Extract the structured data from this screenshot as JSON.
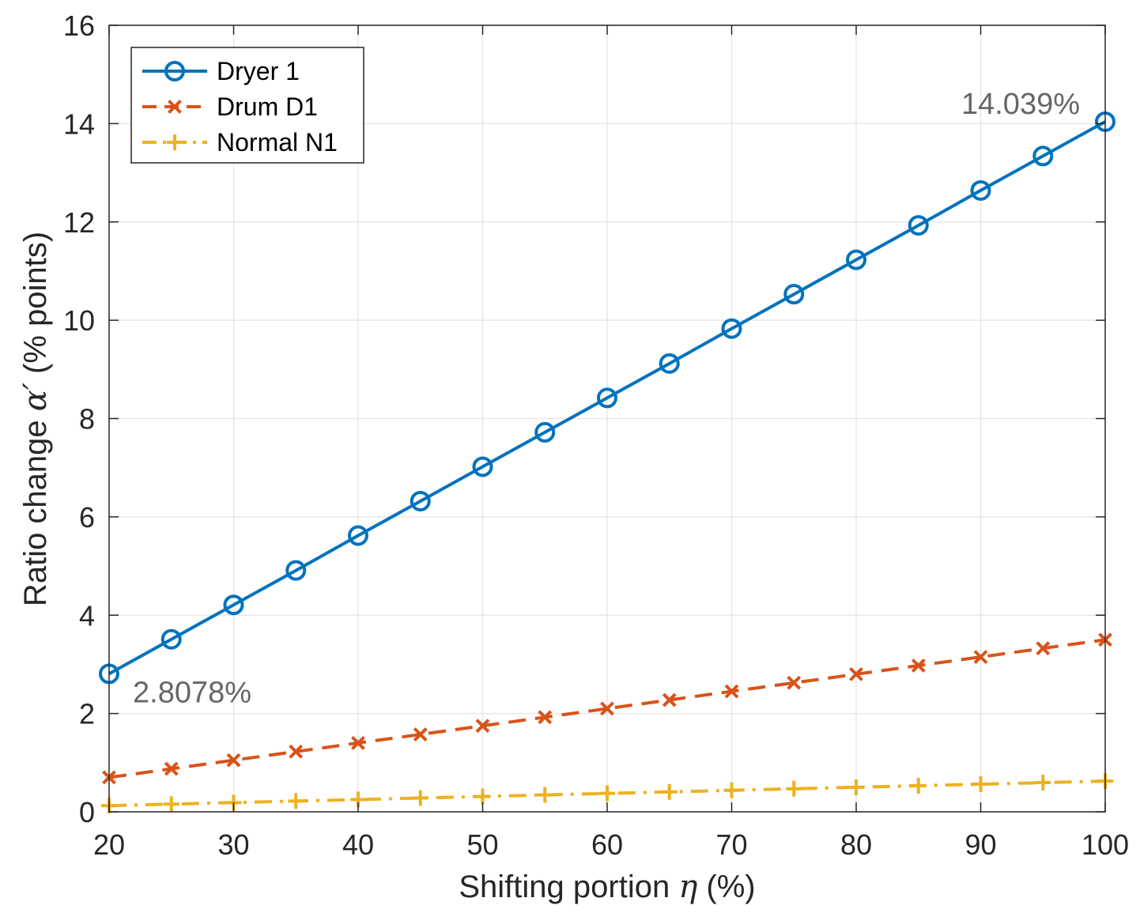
{
  "chart_data": {
    "type": "line",
    "title": "",
    "xlabel": "Shifting portion",
    "xlabel_symbol": "η",
    "xlabel_suffix": "(%)",
    "ylabel": "Ratio change",
    "ylabel_symbol": "α′",
    "ylabel_suffix": "(% points)",
    "xlim": [
      20,
      100
    ],
    "ylim": [
      0,
      16
    ],
    "xticks": [
      20,
      30,
      40,
      50,
      60,
      70,
      80,
      90,
      100
    ],
    "yticks": [
      0,
      2,
      4,
      6,
      8,
      10,
      12,
      14,
      16
    ],
    "grid": true,
    "legend_position": "top-left",
    "x": [
      20,
      25,
      30,
      35,
      40,
      45,
      50,
      55,
      60,
      65,
      70,
      75,
      80,
      85,
      90,
      95,
      100
    ],
    "series": [
      {
        "name": "Dryer 1",
        "color": "#0072BD",
        "dash": "solid",
        "marker": "circle",
        "values": [
          2.8078,
          3.51,
          4.21,
          4.91,
          5.62,
          6.32,
          7.02,
          7.72,
          8.42,
          9.12,
          9.83,
          10.53,
          11.23,
          11.93,
          12.64,
          13.34,
          14.039
        ]
      },
      {
        "name": "Drum D1",
        "color": "#D95319",
        "dash": "dashed",
        "marker": "x",
        "values": [
          0.7,
          0.875,
          1.05,
          1.225,
          1.4,
          1.575,
          1.75,
          1.925,
          2.1,
          2.275,
          2.45,
          2.625,
          2.8,
          2.975,
          3.15,
          3.325,
          3.5
        ]
      },
      {
        "name": "Normal N1",
        "color": "#EDB120",
        "dash": "dashdot",
        "marker": "plus",
        "values": [
          0.125,
          0.156,
          0.1875,
          0.219,
          0.25,
          0.281,
          0.3125,
          0.344,
          0.375,
          0.406,
          0.4375,
          0.469,
          0.5,
          0.531,
          0.5625,
          0.594,
          0.625
        ]
      }
    ],
    "annotations": [
      {
        "text": "2.8078%",
        "x": 20,
        "y": 2.8078,
        "color": "#666666"
      },
      {
        "text": "14.039%",
        "x": 100,
        "y": 14.039,
        "color": "#666666"
      }
    ]
  }
}
